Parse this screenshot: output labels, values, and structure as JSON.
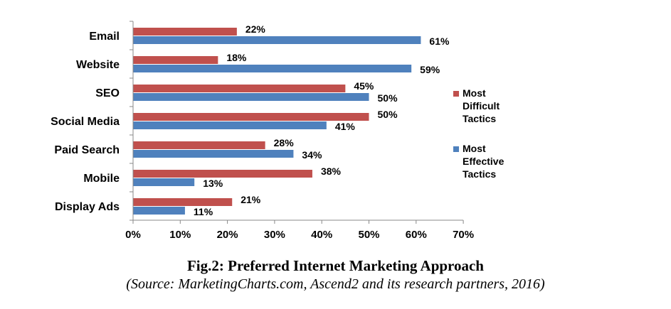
{
  "chart_data": {
    "type": "bar",
    "orientation": "horizontal",
    "categories": [
      "Email",
      "Website",
      "SEO",
      "Social Media",
      "Paid Search",
      "Mobile",
      "Display Ads"
    ],
    "series": [
      {
        "name": "Most Difficult Tactics",
        "values": [
          22,
          18,
          45,
          50,
          28,
          38,
          21
        ],
        "color": "#c0504d"
      },
      {
        "name": "Most Effective Tactics",
        "values": [
          61,
          59,
          50,
          41,
          34,
          13,
          11
        ],
        "color": "#4f81bd"
      }
    ],
    "data_labels": [
      [
        "22%",
        "18%",
        "45%",
        "50%",
        "28%",
        "38%",
        "21%"
      ],
      [
        "61%",
        "59%",
        "50%",
        "41%",
        "34%",
        "13%",
        "11%"
      ]
    ],
    "xlim": [
      0,
      70
    ],
    "x_ticks": [
      0,
      10,
      20,
      30,
      40,
      50,
      60,
      70
    ],
    "x_tick_labels": [
      "0%",
      "10%",
      "20%",
      "30%",
      "40%",
      "50%",
      "60%",
      "70%"
    ],
    "legend": [
      {
        "lines": [
          "Most",
          "Difficult",
          "Tactics"
        ],
        "color": "#c0504d"
      },
      {
        "lines": [
          "Most",
          "Effective",
          "Tactics"
        ],
        "color": "#4f81bd"
      }
    ],
    "legend_position": "right",
    "grid": false
  },
  "caption": {
    "title": "Fig.2: Preferred Internet Marketing Approach",
    "source": "(Source: MarketingCharts.com, Ascend2 and its research partners, 2016)"
  }
}
